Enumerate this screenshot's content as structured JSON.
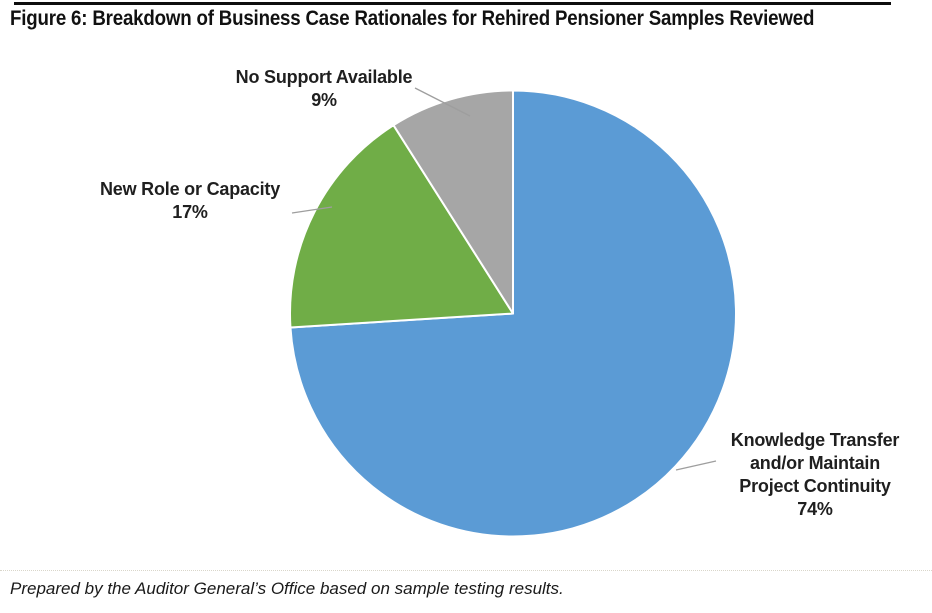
{
  "figure": {
    "title": "Figure 6: Breakdown of Business Case Rationales for Rehired Pensioner Samples Reviewed",
    "source_note": "Prepared by the Auditor General’s Office based on sample testing results."
  },
  "colors": {
    "blue": "#5B9BD5",
    "green": "#70AD47",
    "gray": "#A6A6A6",
    "slice_border": "#FFFFFF",
    "leader_line": "#9E9E9E",
    "text": "#1F1F1F"
  },
  "chart_data": {
    "type": "pie",
    "title": "Breakdown of Business Case Rationales for Rehired Pensioner Samples Reviewed",
    "units": "percent",
    "total": 100,
    "start_angle_deg": 0,
    "direction": "clockwise",
    "legend_position": "none",
    "label_style": "outside callouts with gray leader lines",
    "slices": [
      {
        "label": "Knowledge Transfer and/or Maintain Project Continuity",
        "value": 74,
        "pct_label": "74%",
        "color": "#5B9BD5",
        "display_lines": [
          "Knowledge Transfer",
          "and/or Maintain",
          "Project Continuity",
          "74%"
        ]
      },
      {
        "label": "New Role or Capacity",
        "value": 17,
        "pct_label": "17%",
        "color": "#70AD47",
        "display_lines": [
          "New Role or Capacity",
          "17%"
        ]
      },
      {
        "label": "No Support Available",
        "value": 9,
        "pct_label": "9%",
        "color": "#A6A6A6",
        "display_lines": [
          "No Support Available",
          "9%"
        ]
      }
    ]
  }
}
